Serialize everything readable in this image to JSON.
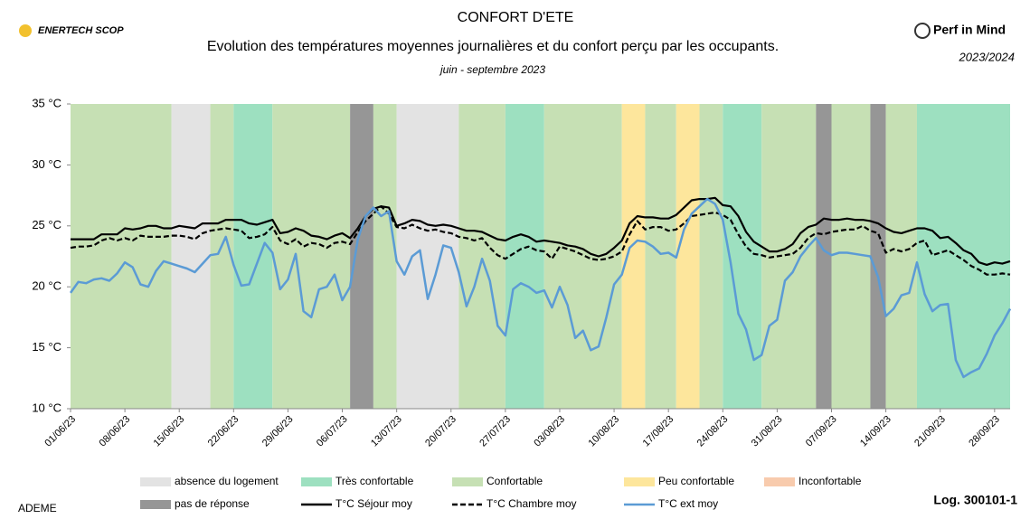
{
  "logo_left": "ENERTECH SCOP",
  "logo_right": "Perf in Mind",
  "season": "2023/2024",
  "source": "ADEME",
  "log_id": "Log. 300101-1",
  "chart_data": {
    "type": "line",
    "title": "CONFORT D'ETE",
    "subtitle": "Evolution des températures moyennes journalières et du confort perçu par les occupants.",
    "period": "juin - septembre 2023",
    "x": [
      "01/06/23",
      null,
      null,
      null,
      null,
      null,
      null,
      "08/06/23",
      null,
      null,
      null,
      null,
      null,
      null,
      "15/06/23",
      null,
      null,
      null,
      null,
      null,
      null,
      "22/06/23",
      null,
      null,
      null,
      null,
      null,
      null,
      "29/06/23",
      null,
      null,
      null,
      null,
      null,
      null,
      "06/07/23",
      null,
      null,
      null,
      null,
      null,
      null,
      "13/07/23",
      null,
      null,
      null,
      null,
      null,
      null,
      "20/07/23",
      null,
      null,
      null,
      null,
      null,
      null,
      "27/07/23",
      null,
      null,
      null,
      null,
      null,
      null,
      "03/08/23",
      null,
      null,
      null,
      null,
      null,
      null,
      "10/08/23",
      null,
      null,
      null,
      null,
      null,
      null,
      "17/08/23",
      null,
      null,
      null,
      null,
      null,
      null,
      "24/08/23",
      null,
      null,
      null,
      null,
      null,
      null,
      "31/08/23",
      null,
      null,
      null,
      null,
      null,
      null,
      "07/09/23",
      null,
      null,
      null,
      null,
      null,
      null,
      "14/09/23",
      null,
      null,
      null,
      null,
      null,
      null,
      "21/09/23",
      null,
      null,
      null,
      null,
      null,
      null,
      "28/09/23",
      null,
      null
    ],
    "ylim": [
      10,
      35
    ],
    "yticks": [
      {
        "value": 10,
        "label": "10 °C"
      },
      {
        "value": 15,
        "label": "15 °C"
      },
      {
        "value": 20,
        "label": "20 °C"
      },
      {
        "value": 25,
        "label": "25 °C"
      },
      {
        "value": 30,
        "label": "30 °C"
      },
      {
        "value": 35,
        "label": "35 °C"
      }
    ],
    "band_categories": [
      {
        "name": "absence du logement",
        "color": "#e3e3e3"
      },
      {
        "name": "Très confortable",
        "color": "#9de0c0"
      },
      {
        "name": "Confortable",
        "color": "#c6e0b4"
      },
      {
        "name": "Peu confortable",
        "color": "#fde69c"
      },
      {
        "name": "Inconfortable",
        "color": "#f8cbad"
      },
      {
        "name": "pas de réponse",
        "color": "#969696"
      }
    ],
    "bands": [
      {
        "from": 0,
        "to": 13,
        "category": 2
      },
      {
        "from": 13,
        "to": 18,
        "category": 0
      },
      {
        "from": 18,
        "to": 21,
        "category": 2
      },
      {
        "from": 21,
        "to": 26,
        "category": 1
      },
      {
        "from": 26,
        "to": 36,
        "category": 2
      },
      {
        "from": 36,
        "to": 39,
        "category": 5
      },
      {
        "from": 39,
        "to": 42,
        "category": 2
      },
      {
        "from": 42,
        "to": 50,
        "category": 0
      },
      {
        "from": 50,
        "to": 56,
        "category": 2
      },
      {
        "from": 56,
        "to": 61,
        "category": 1
      },
      {
        "from": 61,
        "to": 71,
        "category": 2
      },
      {
        "from": 71,
        "to": 74,
        "category": 3
      },
      {
        "from": 74,
        "to": 78,
        "category": 2
      },
      {
        "from": 78,
        "to": 81,
        "category": 3
      },
      {
        "from": 81,
        "to": 84,
        "category": 2
      },
      {
        "from": 84,
        "to": 89,
        "category": 1
      },
      {
        "from": 89,
        "to": 96,
        "category": 2
      },
      {
        "from": 96,
        "to": 98,
        "category": 5
      },
      {
        "from": 98,
        "to": 103,
        "category": 2
      },
      {
        "from": 103,
        "to": 105,
        "category": 5
      },
      {
        "from": 105,
        "to": 109,
        "category": 2
      },
      {
        "from": 109,
        "to": 121,
        "category": 1
      }
    ],
    "series": [
      {
        "name": "T°C Séjour moy",
        "color": "#000000",
        "dash": false,
        "values": [
          23.9,
          23.9,
          23.9,
          23.9,
          24.3,
          24.3,
          24.3,
          24.8,
          24.7,
          24.8,
          25.0,
          25.0,
          24.8,
          24.8,
          25.0,
          24.9,
          24.8,
          25.2,
          25.2,
          25.2,
          25.5,
          25.5,
          25.5,
          25.2,
          25.1,
          25.3,
          25.5,
          24.4,
          24.5,
          24.8,
          24.6,
          24.2,
          24.1,
          23.9,
          24.2,
          24.4,
          24.0,
          24.8,
          25.8,
          26.4,
          26.6,
          26.5,
          25.0,
          25.2,
          25.5,
          25.4,
          25.1,
          25.0,
          25.1,
          25.0,
          24.8,
          24.6,
          24.6,
          24.5,
          24.2,
          23.9,
          23.8,
          24.1,
          24.3,
          24.1,
          23.7,
          23.8,
          23.7,
          23.6,
          23.4,
          23.3,
          23.1,
          22.7,
          22.5,
          22.7,
          23.2,
          23.8,
          25.2,
          25.8,
          25.7,
          25.7,
          25.6,
          25.6,
          25.9,
          26.5,
          27.1,
          27.2,
          27.2,
          27.3,
          26.7,
          26.6,
          25.8,
          24.5,
          23.7,
          23.3,
          22.9,
          22.9,
          23.1,
          23.5,
          24.4,
          24.9,
          25.1,
          25.6,
          25.5,
          25.5,
          25.6,
          25.5,
          25.5,
          25.4,
          25.2,
          24.8,
          24.5,
          24.4,
          24.6,
          24.8,
          24.8,
          24.6,
          24.0,
          24.1,
          23.6,
          23.0,
          22.7,
          22.0,
          21.8,
          22.0,
          21.9,
          22.1
        ]
      },
      {
        "name": "T°C Chambre moy",
        "color": "#000000",
        "dash": true,
        "values": [
          23.2,
          23.3,
          23.3,
          23.4,
          23.8,
          24.0,
          23.8,
          24.0,
          23.8,
          24.2,
          24.1,
          24.1,
          24.1,
          24.2,
          24.2,
          24.1,
          23.9,
          24.4,
          24.6,
          24.7,
          24.8,
          24.7,
          24.6,
          24.0,
          24.1,
          24.3,
          24.9,
          23.8,
          23.5,
          23.9,
          23.3,
          23.6,
          23.5,
          23.2,
          23.6,
          23.7,
          23.5,
          24.5,
          25.4,
          26.0,
          26.6,
          26.0,
          24.9,
          24.8,
          25.1,
          24.8,
          24.6,
          24.7,
          24.5,
          24.4,
          24.1,
          24.0,
          23.8,
          24.0,
          23.2,
          22.6,
          22.3,
          22.7,
          23.1,
          23.3,
          23.0,
          22.9,
          22.3,
          23.3,
          23.1,
          22.9,
          22.6,
          22.3,
          22.2,
          22.3,
          22.5,
          22.9,
          24.3,
          25.4,
          24.7,
          24.9,
          24.9,
          24.6,
          24.7,
          25.2,
          25.8,
          25.9,
          26.0,
          26.1,
          25.9,
          25.5,
          24.3,
          23.3,
          22.7,
          22.6,
          22.4,
          22.5,
          22.6,
          22.7,
          23.2,
          24.0,
          24.4,
          24.3,
          24.5,
          24.6,
          24.7,
          24.7,
          25.0,
          24.6,
          24.4,
          22.8,
          23.1,
          22.9,
          23.1,
          23.6,
          23.8,
          22.6,
          22.8,
          23.0,
          22.6,
          22.2,
          21.7,
          21.4,
          21.0,
          21.0,
          21.1,
          21.0
        ]
      },
      {
        "name": "T°C ext moy",
        "color": "#5b9bd5",
        "dash": false,
        "values": [
          19.5,
          20.4,
          20.3,
          20.6,
          20.7,
          20.5,
          21.1,
          22.0,
          21.6,
          20.2,
          20.0,
          21.3,
          22.1,
          21.9,
          21.7,
          21.5,
          21.2,
          21.9,
          22.6,
          22.7,
          24.1,
          21.8,
          20.1,
          20.2,
          21.9,
          23.6,
          22.8,
          19.8,
          20.6,
          22.7,
          18.0,
          17.5,
          19.8,
          20.0,
          21.0,
          18.9,
          20.0,
          23.9,
          25.8,
          26.5,
          25.8,
          26.2,
          22.1,
          21.0,
          22.5,
          23.0,
          19.0,
          21.0,
          23.4,
          23.2,
          21.2,
          18.4,
          20.0,
          22.3,
          20.5,
          16.8,
          16.0,
          19.8,
          20.3,
          20.0,
          19.5,
          19.7,
          18.3,
          20.0,
          18.5,
          15.8,
          16.4,
          14.8,
          15.1,
          17.5,
          20.2,
          21.0,
          23.2,
          23.8,
          23.7,
          23.3,
          22.7,
          22.8,
          22.4,
          24.7,
          26.0,
          26.6,
          27.2,
          26.8,
          25.5,
          22.0,
          17.8,
          16.5,
          14.0,
          14.4,
          16.8,
          17.3,
          20.5,
          21.2,
          22.5,
          23.3,
          24.0,
          23.0,
          22.6,
          22.8,
          22.8,
          22.7,
          22.6,
          22.5,
          20.8,
          17.6,
          18.2,
          19.3,
          19.5,
          22.0,
          19.4,
          18.0,
          18.5,
          18.6,
          14.0,
          12.6,
          13.0,
          13.3,
          14.5,
          16.0,
          17.0,
          18.2
        ]
      }
    ]
  }
}
